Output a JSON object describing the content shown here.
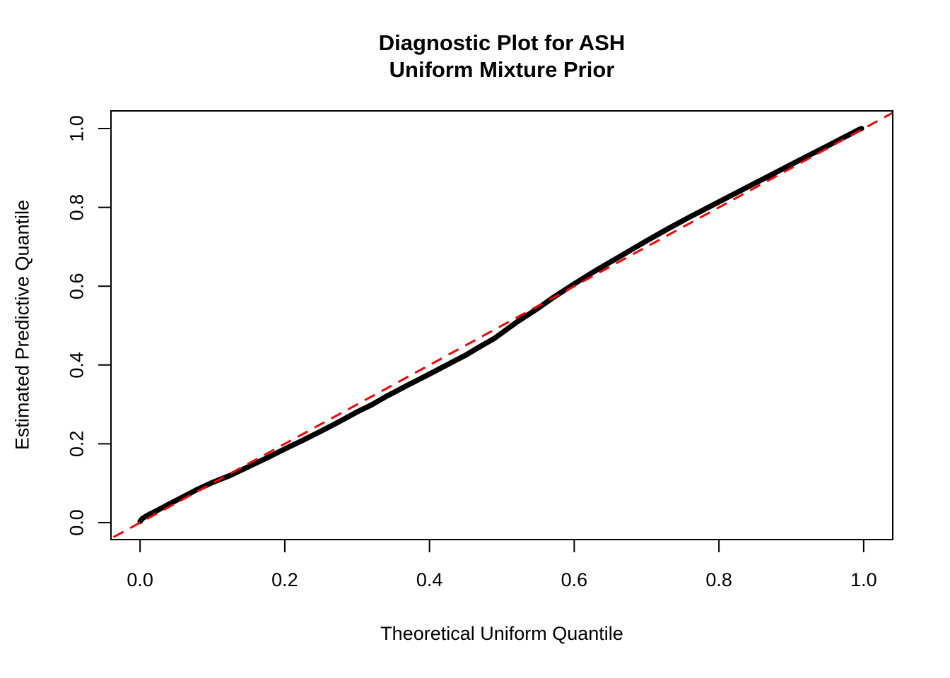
{
  "figure": {
    "title_line1": "Diagnostic Plot for ASH",
    "title_line2": "Uniform Mixture Prior"
  },
  "chart_data": {
    "type": "scatter",
    "title": "Diagnostic Plot for ASH\nUniform Mixture Prior",
    "title_line1": "Diagnostic Plot for ASH",
    "title_line2": "Uniform Mixture Prior",
    "xlabel": "Theoretical Uniform Quantile",
    "ylabel": "Estimated Predictive Quantile",
    "xlim": [
      -0.0402,
      1.0402
    ],
    "ylim": [
      -0.043,
      1.0448
    ],
    "grid": false,
    "legend": false,
    "x_ticks": [
      0.0,
      0.2,
      0.4,
      0.6,
      0.8,
      1.0
    ],
    "x_tick_labels": [
      "0.0",
      "0.2",
      "0.4",
      "0.6",
      "0.8",
      "1.0"
    ],
    "y_ticks": [
      0.0,
      0.2,
      0.4,
      0.6,
      0.8,
      1.0
    ],
    "y_tick_labels": [
      "0.0",
      "0.2",
      "0.4",
      "0.6",
      "0.8",
      "1.0"
    ],
    "colors": {
      "points": "#000000",
      "reference_line": "#FF0000",
      "axes": "#000000",
      "background": "#FFFFFF"
    },
    "series": [
      {
        "name": "estimated-predictive-quantiles",
        "kind": "point-band",
        "color": "#000000",
        "points": [
          [
            0.0,
            0.003
          ],
          [
            0.003,
            0.01
          ],
          [
            0.008,
            0.016
          ],
          [
            0.015,
            0.023
          ],
          [
            0.025,
            0.032
          ],
          [
            0.04,
            0.047
          ],
          [
            0.06,
            0.066
          ],
          [
            0.08,
            0.085
          ],
          [
            0.1,
            0.102
          ],
          [
            0.125,
            0.12
          ],
          [
            0.15,
            0.142
          ],
          [
            0.175,
            0.164
          ],
          [
            0.2,
            0.187
          ],
          [
            0.225,
            0.209
          ],
          [
            0.25,
            0.232
          ],
          [
            0.275,
            0.256
          ],
          [
            0.3,
            0.281
          ],
          [
            0.32,
            0.299
          ],
          [
            0.34,
            0.32
          ],
          [
            0.37,
            0.349
          ],
          [
            0.4,
            0.377
          ],
          [
            0.43,
            0.406
          ],
          [
            0.45,
            0.425
          ],
          [
            0.47,
            0.447
          ],
          [
            0.49,
            0.468
          ],
          [
            0.52,
            0.508
          ],
          [
            0.55,
            0.544
          ],
          [
            0.57,
            0.57
          ],
          [
            0.6,
            0.606
          ],
          [
            0.63,
            0.64
          ],
          [
            0.66,
            0.672
          ],
          [
            0.7,
            0.715
          ],
          [
            0.73,
            0.746
          ],
          [
            0.76,
            0.776
          ],
          [
            0.8,
            0.814
          ],
          [
            0.84,
            0.852
          ],
          [
            0.88,
            0.89
          ],
          [
            0.92,
            0.928
          ],
          [
            0.95,
            0.956
          ],
          [
            0.97,
            0.975
          ],
          [
            0.985,
            0.989
          ],
          [
            0.993,
            0.997
          ],
          [
            0.997,
            1.0
          ]
        ]
      },
      {
        "name": "identity-reference-line",
        "kind": "abline",
        "intercept": 0,
        "slope": 1,
        "style": "dashed",
        "color": "#FF0000"
      }
    ]
  }
}
